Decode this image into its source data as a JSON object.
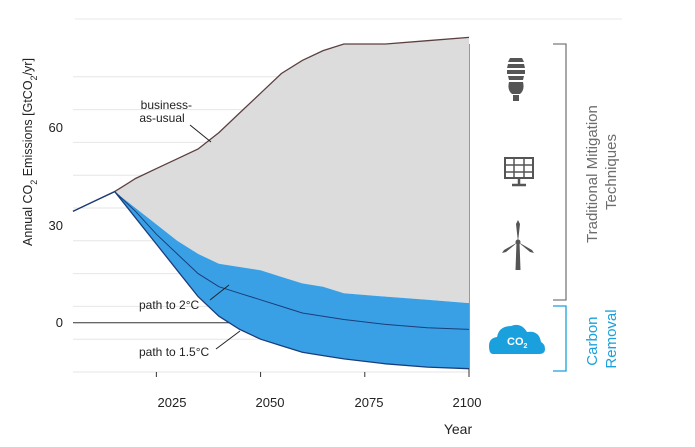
{
  "chart_data": {
    "type": "area",
    "title": "",
    "ylabel_parts": {
      "prefix": "Annual CO",
      "sub": "2",
      "middle": " Emissions [GtCO",
      "sub2": "2",
      "suffix": "/yr]"
    },
    "xlabel": "Year",
    "x_ticks": [
      "2025",
      "2050",
      "2075",
      "2100"
    ],
    "y_ticks": [
      "60",
      "30",
      "0"
    ],
    "xlim": [
      2005,
      2100
    ],
    "ylim": [
      -15,
      85
    ],
    "grid": true,
    "series": [
      {
        "name": "business-as-usual",
        "x": [
          2005,
          2010,
          2015,
          2020,
          2025,
          2030,
          2035,
          2040,
          2045,
          2050,
          2055,
          2060,
          2065,
          2070,
          2080,
          2090,
          2100
        ],
        "y": [
          34,
          37,
          40,
          44,
          47,
          50,
          53,
          58,
          64,
          70,
          76,
          80,
          83,
          85,
          85,
          86,
          87
        ]
      },
      {
        "name": "path to 2°C",
        "x": [
          2005,
          2010,
          2015,
          2020,
          2025,
          2030,
          2035,
          2040,
          2045,
          2050,
          2055,
          2060,
          2065,
          2070,
          2080,
          2090,
          2100
        ],
        "y": [
          34,
          37,
          40,
          34,
          27,
          21,
          15,
          11,
          9,
          7,
          5,
          3,
          2,
          1,
          -0.5,
          -1.5,
          -2
        ]
      },
      {
        "name": "path to 1.5°C",
        "x": [
          2005,
          2010,
          2015,
          2020,
          2025,
          2030,
          2035,
          2040,
          2045,
          2050,
          2055,
          2060,
          2065,
          2070,
          2080,
          2090,
          2100
        ],
        "y": [
          34,
          37,
          40,
          32,
          24,
          16,
          8,
          2,
          -2,
          -5,
          -7,
          -9,
          -10,
          -11,
          -12.5,
          -13.5,
          -14
        ]
      }
    ],
    "mitigation_upper": {
      "x": [
        2015,
        2020,
        2025,
        2030,
        2035,
        2040,
        2045,
        2050,
        2055,
        2060,
        2065,
        2070,
        2080,
        2090,
        2100
      ],
      "y": [
        40,
        35,
        30,
        25,
        21,
        18,
        17,
        16,
        14,
        12,
        11,
        9,
        8,
        7,
        6
      ]
    },
    "annotations": [
      "business-\nas-usual",
      "path to 2°C",
      "path to 1.5°C"
    ],
    "colors": {
      "bau_fill": "#dcdcdc",
      "bau_line": "#5c4040",
      "removal_fill": "#3aa0e6",
      "path_line": "#1a3d7a",
      "grid": "#e6e6e6",
      "bracket_gray": "#7a7a7a",
      "bracket_blue": "#1aa1dd"
    }
  },
  "side_panel": {
    "mitigation_label_line1": "Traditional Mitigation",
    "mitigation_label_line2": "Techniques",
    "removal_label_line1": "Carbon",
    "removal_label_line2": "Removal",
    "icons": [
      "light-bulb-icon",
      "solar-panel-icon",
      "wind-turbine-icon",
      "co2-cloud-icon"
    ],
    "co2_badge": {
      "main": "CO",
      "sub": "2"
    }
  }
}
